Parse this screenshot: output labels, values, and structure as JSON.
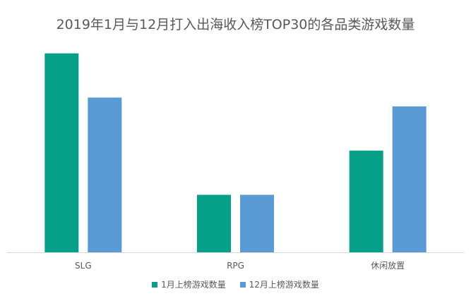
{
  "chart_data": {
    "type": "bar",
    "title": "2019年1月与12月打入出海收入榜TOP30的各品类游戏数量",
    "categories": [
      "SLG",
      "RPG",
      "休闲放置"
    ],
    "series": [
      {
        "name": "1月上榜游戏数量",
        "values": [
          9,
          2.6,
          4.6
        ],
        "color": "#06A088"
      },
      {
        "name": "12月上榜游戏数量",
        "values": [
          7,
          2.6,
          6.6
        ],
        "color": "#5B9BD5"
      }
    ],
    "ylim": [
      0,
      9.5
    ],
    "grid": false,
    "legend_position": "bottom",
    "xlabel": "",
    "ylabel": ""
  }
}
